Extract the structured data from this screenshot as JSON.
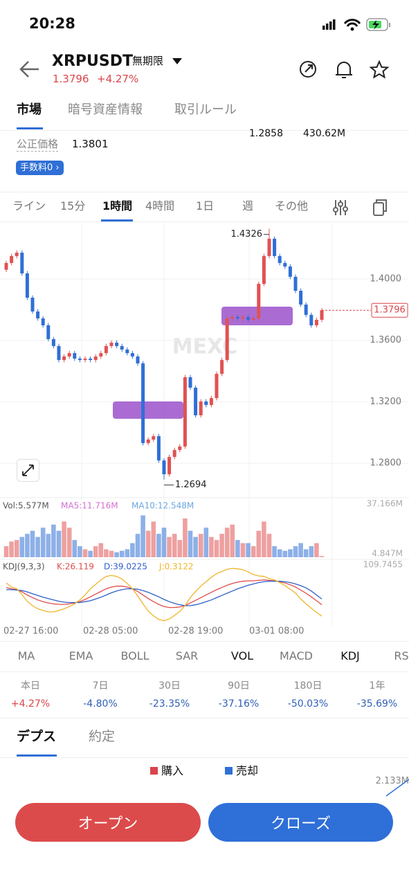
{
  "status": {
    "time": "20:28"
  },
  "header": {
    "symbol": "XRPUSDT",
    "tag": "無期限",
    "price": "1.3796",
    "change": "+4.27%"
  },
  "tabs": [
    "市場",
    "暗号資産情報",
    "取引ルール"
  ],
  "info": {
    "low": "1.2858",
    "turnover": "430.62M",
    "fair_label": "公正価格",
    "fair": "1.3801",
    "fee": "手数料0 ›"
  },
  "intervals": [
    "ライン",
    "15分",
    "1時間",
    "4時間",
    "1日",
    "週",
    "その他"
  ],
  "chart_data": {
    "type": "candlestick",
    "watermark": "MEXC",
    "ylim": [
      1.258,
      1.4365
    ],
    "yticks": [
      {
        "value": 1.4,
        "label": "1.4000"
      },
      {
        "value": 1.36,
        "label": "1.3600"
      },
      {
        "value": 1.32,
        "label": "1.3200"
      },
      {
        "value": 1.28,
        "label": "1.2800"
      }
    ],
    "high_label": "1.4326",
    "low_label": "1.2694",
    "last_label": "1.3796",
    "up_color": "#e05252",
    "down_color": "#2f6fd6",
    "open": [
      1.406,
      1.4104,
      1.4149,
      1.4171,
      1.4036,
      1.3878,
      1.3788,
      1.3743,
      1.3698,
      1.3608,
      1.3563,
      1.3472,
      1.3495,
      1.3517,
      1.3481,
      1.3472,
      1.3481,
      1.3472,
      1.3495,
      1.3517,
      1.3563,
      1.3585,
      1.3563,
      1.354,
      1.3517,
      1.3495,
      1.345,
      1.2931,
      1.2954,
      1.2976,
      1.2818,
      1.2728,
      1.2841,
      1.2886,
      1.2909,
      1.336,
      1.3292,
      1.3112,
      1.3202,
      1.3179,
      1.3224,
      1.3382,
      1.3472,
      1.3743,
      1.3752,
      1.3743,
      1.3752,
      1.3734,
      1.3743,
      1.3968,
      1.4149,
      1.4262,
      1.4149,
      1.4104,
      1.4081,
      1.4014,
      1.3923,
      1.3833,
      1.3766,
      1.3698,
      1.3734
    ],
    "high": [
      1.4119,
      1.4164,
      1.4186,
      1.4186,
      1.4051,
      1.3893,
      1.3803,
      1.3758,
      1.3713,
      1.3623,
      1.3578,
      1.351,
      1.3532,
      1.3532,
      1.3496,
      1.3496,
      1.3496,
      1.351,
      1.3532,
      1.3578,
      1.36,
      1.36,
      1.3578,
      1.3555,
      1.3532,
      1.351,
      1.3465,
      1.2969,
      1.2991,
      1.2991,
      1.2833,
      1.2856,
      1.2901,
      1.2924,
      1.3375,
      1.3375,
      1.3307,
      1.3217,
      1.3217,
      1.3239,
      1.3397,
      1.3487,
      1.3758,
      1.3767,
      1.3767,
      1.3767,
      1.3767,
      1.3758,
      1.3983,
      1.4164,
      1.4326,
      1.4277,
      1.4164,
      1.4119,
      1.4096,
      1.4029,
      1.3938,
      1.3848,
      1.3781,
      1.3749,
      1.3811
    ],
    "low": [
      1.4045,
      1.4089,
      1.4134,
      1.4021,
      1.3863,
      1.3773,
      1.3728,
      1.3683,
      1.3593,
      1.3548,
      1.3457,
      1.3457,
      1.348,
      1.3466,
      1.3457,
      1.3457,
      1.3457,
      1.3457,
      1.348,
      1.3502,
      1.3548,
      1.3548,
      1.3525,
      1.3502,
      1.348,
      1.3435,
      1.2916,
      1.2916,
      1.2939,
      1.2803,
      1.2694,
      1.2713,
      1.2826,
      1.2871,
      1.2894,
      1.3277,
      1.3097,
      1.3097,
      1.3164,
      1.3164,
      1.3209,
      1.3367,
      1.3457,
      1.3728,
      1.3728,
      1.3728,
      1.3719,
      1.3719,
      1.3728,
      1.3953,
      1.4134,
      1.4134,
      1.4089,
      1.4066,
      1.3999,
      1.3908,
      1.3818,
      1.3751,
      1.3683,
      1.3683,
      1.3719
    ],
    "close": [
      1.4104,
      1.4149,
      1.4171,
      1.4036,
      1.3878,
      1.3788,
      1.3743,
      1.3698,
      1.3608,
      1.3563,
      1.3472,
      1.3495,
      1.3517,
      1.3481,
      1.3472,
      1.3481,
      1.3472,
      1.3495,
      1.3517,
      1.3563,
      1.3585,
      1.3563,
      1.354,
      1.3517,
      1.3495,
      1.345,
      1.2931,
      1.2954,
      1.2976,
      1.2818,
      1.2728,
      1.2841,
      1.2886,
      1.2909,
      1.336,
      1.3292,
      1.3112,
      1.3202,
      1.3179,
      1.3224,
      1.3382,
      1.3472,
      1.3743,
      1.3752,
      1.3743,
      1.3752,
      1.3734,
      1.3743,
      1.3968,
      1.4149,
      1.4262,
      1.4149,
      1.4104,
      1.4081,
      1.4014,
      1.3923,
      1.3833,
      1.3766,
      1.3698,
      1.3734,
      1.3796
    ],
    "volume": {
      "header": [
        "Vol:5.577M",
        "MA5:11.716M",
        "MA10:12.548M"
      ],
      "ylim": [
        4.847,
        37.166
      ],
      "yticks": [
        {
          "value": 37.166,
          "label": "37.166M"
        },
        {
          "value": 4.847,
          "label": "4.847M"
        }
      ],
      "values": [
        12,
        15,
        16,
        18,
        20,
        22,
        18,
        24,
        20,
        26,
        22,
        28,
        24,
        16,
        12,
        10,
        9,
        12,
        14,
        10,
        9,
        8,
        9,
        10,
        14,
        20,
        32,
        22,
        28,
        20,
        24,
        18,
        20,
        16,
        30,
        22,
        18,
        20,
        24,
        18,
        16,
        20,
        24,
        26,
        16,
        14,
        14,
        12,
        22,
        28,
        20,
        12,
        10,
        9,
        10,
        12,
        14,
        10,
        12,
        14,
        5.577
      ]
    },
    "kdj": {
      "header": [
        "KDJ(9,3,3)",
        "K:26.119",
        "D:39.0225",
        "J:0.3122"
      ],
      "ylim": [
        -15,
        109.7455
      ],
      "yticks": [
        {
          "value": 109.7455,
          "label": "109.7455"
        }
      ],
      "series": [
        {
          "name": "K",
          "color": "#e04b4b",
          "values": [
            65,
            62,
            60,
            55,
            48,
            42,
            37,
            33,
            30,
            28,
            27,
            27,
            28,
            30,
            33,
            38,
            44,
            50,
            56,
            62,
            66,
            68,
            68,
            66,
            62,
            56,
            48,
            40,
            33,
            27,
            22,
            20,
            20,
            21,
            24,
            30,
            36,
            42,
            48,
            54,
            60,
            65,
            70,
            74,
            77,
            79,
            80,
            80,
            81,
            82,
            81,
            80,
            78,
            75,
            71,
            66,
            59,
            52,
            44,
            35,
            26.119
          ]
        },
        {
          "name": "D",
          "color": "#2e5fc9",
          "values": [
            60,
            60,
            59,
            58,
            55,
            51,
            47,
            43,
            40,
            37,
            34,
            32,
            31,
            31,
            31,
            33,
            35,
            39,
            43,
            48,
            53,
            57,
            60,
            62,
            62,
            61,
            58,
            54,
            49,
            44,
            38,
            33,
            29,
            26,
            24,
            24,
            26,
            29,
            33,
            37,
            42,
            47,
            52,
            57,
            62,
            66,
            70,
            73,
            76,
            78,
            79,
            79,
            79,
            78,
            76,
            73,
            69,
            64,
            57,
            48,
            39.0225
          ]
        },
        {
          "name": "J",
          "color": "#f0b429",
          "values": [
            75,
            66,
            62,
            49,
            34,
            24,
            17,
            13,
            10,
            10,
            13,
            17,
            22,
            28,
            37,
            48,
            62,
            72,
            82,
            90,
            92,
            90,
            84,
            74,
            62,
            46,
            28,
            12,
            1,
            -7,
            -10,
            -6,
            2,
            11,
            24,
            42,
            56,
            68,
            78,
            88,
            96,
            101,
            106,
            108,
            107,
            105,
            100,
            94,
            91,
            90,
            85,
            82,
            76,
            69,
            61,
            52,
            39,
            28,
            18,
            9,
            0.3122
          ]
        }
      ]
    },
    "time_labels": [
      "02-27 16:00",
      "02-28 05:00",
      "02-28 19:00",
      "03-01 08:00"
    ]
  },
  "indicators": [
    "MA",
    "EMA",
    "BOLL",
    "SAR",
    "VOL",
    "MACD",
    "KDJ",
    "RS"
  ],
  "periods": {
    "labels": [
      "本日",
      "7日",
      "30日",
      "90日",
      "180日",
      "1年"
    ],
    "values": [
      "+4.27%",
      "-4.80%",
      "-23.35%",
      "-37.16%",
      "-50.03%",
      "-35.69%"
    ]
  },
  "depth": {
    "tabs": [
      "デプス",
      "約定"
    ],
    "buy": "購入",
    "sell": "売却",
    "amount": "2.133M"
  },
  "buttons": {
    "open": "オープン",
    "close": "クローズ"
  }
}
